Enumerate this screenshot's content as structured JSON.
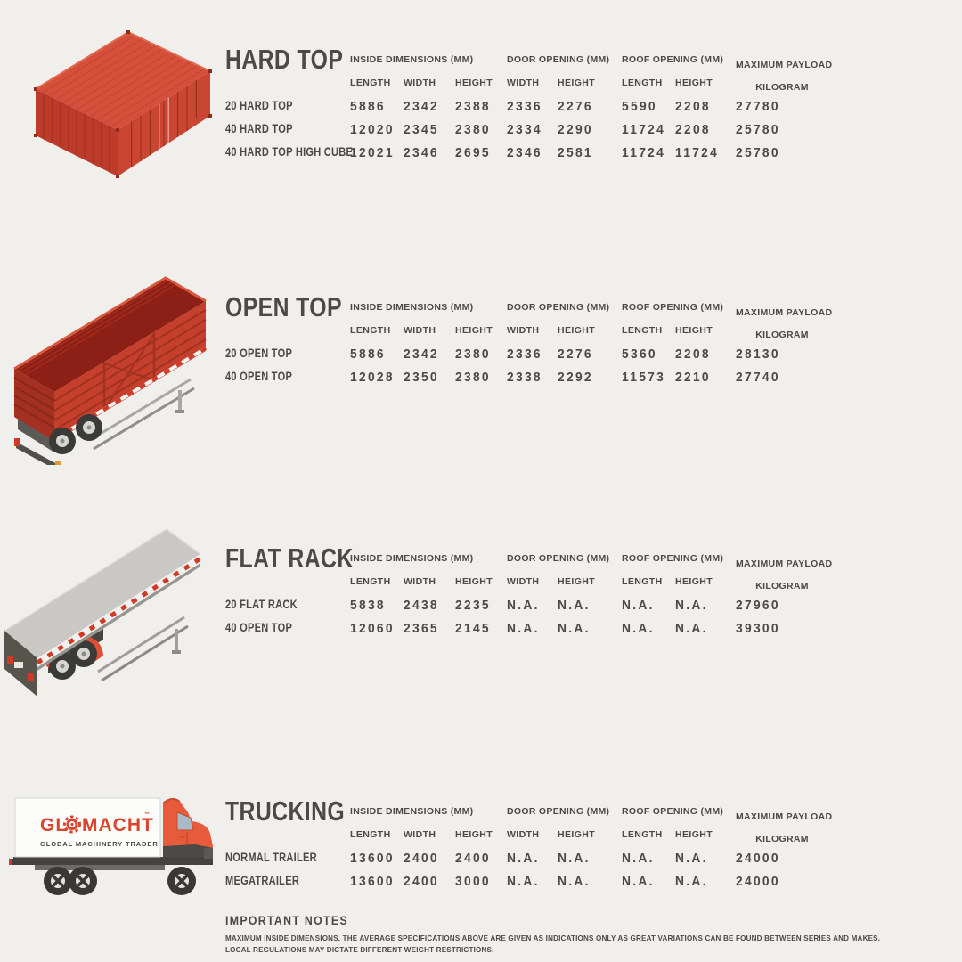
{
  "page": {
    "title": "Container and trailer specifications infographic"
  },
  "colors": {
    "background": "#f0efec",
    "text": "#4b4a49",
    "container_red": "#c9432f",
    "truck_cab_orange": "#e75a3b",
    "logo_red": "#d7462d"
  },
  "columns": {
    "groups": [
      {
        "label": "INSIDE DIMENSIONS (MM)",
        "span": 3
      },
      {
        "label": "DOOR OPENING (MM)",
        "span": 2
      },
      {
        "label": "ROOF OPENING (MM)",
        "span": 2
      }
    ],
    "payload_header": [
      "MAXIMUM PAYLOAD",
      "KILOGRAM"
    ],
    "subheaders": [
      "LENGTH",
      "WIDTH",
      "HEIGHT",
      "WIDTH",
      "HEIGHT",
      "LENGTH",
      "HEIGHT"
    ]
  },
  "sections": [
    {
      "title": "HARD TOP",
      "illustration": "hard-top-container-red",
      "rows": [
        {
          "label": "20 HARD TOP",
          "values": [
            "5886",
            "2342",
            "2388",
            "2336",
            "2276",
            "5590",
            "2208",
            "27780"
          ]
        },
        {
          "label": "40 HARD TOP",
          "values": [
            "12020",
            "2345",
            "2380",
            "2334",
            "2290",
            "11724",
            "2208",
            "25780"
          ]
        },
        {
          "label": "40 HARD TOP HIGH CUBE",
          "values": [
            "12021",
            "2346",
            "2695",
            "2346",
            "2581",
            "11724",
            "11724",
            "25780"
          ]
        }
      ]
    },
    {
      "title": "OPEN TOP",
      "illustration": "open-top-trailer-red",
      "rows": [
        {
          "label": "20 OPEN TOP",
          "values": [
            "5886",
            "2342",
            "2380",
            "2336",
            "2276",
            "5360",
            "2208",
            "28130"
          ]
        },
        {
          "label": "40 OPEN TOP",
          "values": [
            "12028",
            "2350",
            "2380",
            "2338",
            "2292",
            "11573",
            "2210",
            "27740"
          ]
        }
      ]
    },
    {
      "title": "FLAT RACK",
      "illustration": "flat-rack-trailer-gray",
      "rows": [
        {
          "label": "20 FLAT RACK",
          "values": [
            "5838",
            "2438",
            "2235",
            "N.A.",
            "N.A.",
            "N.A.",
            "N.A.",
            "27960"
          ]
        },
        {
          "label": "40 OPEN TOP",
          "values": [
            "12060",
            "2365",
            "2145",
            "N.A.",
            "N.A.",
            "N.A.",
            "N.A.",
            "39300"
          ]
        }
      ]
    },
    {
      "title": "TRUCKING",
      "illustration": "glomacht-box-truck",
      "rows": [
        {
          "label": "NORMAL TRAILER",
          "values": [
            "13600",
            "2400",
            "2400",
            "N.A.",
            "N.A.",
            "N.A.",
            "N.A.",
            "24000"
          ]
        },
        {
          "label": "MEGATRAILER",
          "values": [
            "13600",
            "2400",
            "3000",
            "N.A.",
            "N.A.",
            "N.A.",
            "N.A.",
            "24000"
          ]
        }
      ]
    }
  ],
  "truck_logo": {
    "gl": "GL",
    "macht": "MACHT",
    "tm": "™",
    "gear_icon": "gear-icon",
    "subtitle": "GLOBAL MACHINERY TRADER"
  },
  "notes": {
    "title": "IMPORTANT NOTES",
    "lines": [
      "MAXIMUM INSIDE DIMENSIONS. THE AVERAGE SPECIFICATIONS ABOVE ARE GIVEN AS INDICATIONS ONLY AS GREAT VARIATIONS CAN BE FOUND BETWEEN SERIES AND MAKES.",
      "LOCAL REGULATIONS MAY DICTATE DIFFERENT WEIGHT RESTRICTIONS."
    ]
  }
}
